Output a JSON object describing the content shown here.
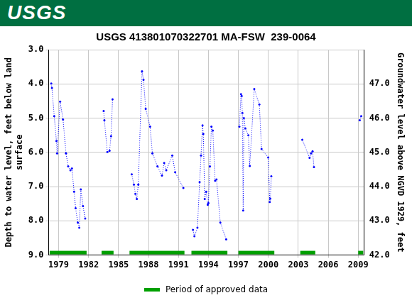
{
  "header": {
    "logo": "USGS"
  },
  "chart_data": {
    "type": "line",
    "title": "USGS 413801070322701 MA-FSW  239-0064",
    "y_label": [
      "Depth to water level, feet below land",
      "surface"
    ],
    "y2_label": "Groundwater level above NGVD 1929, feet",
    "xlim": [
      1978.0,
      2009.6
    ],
    "xticks": [
      1979,
      1982,
      1985,
      1988,
      1991,
      1994,
      1997,
      2000,
      2003,
      2006,
      2009
    ],
    "ylim": [
      9.0,
      3.0
    ],
    "yticks": [
      {
        "value": 3,
        "label": "3.0"
      },
      {
        "value": 4,
        "label": "4.0"
      },
      {
        "value": 5,
        "label": "5.0"
      },
      {
        "value": 6,
        "label": "6.0"
      },
      {
        "value": 7,
        "label": "7.0"
      },
      {
        "value": 8,
        "label": "8.0"
      },
      {
        "value": 9,
        "label": "9.0"
      }
    ],
    "y2lim": [
      42.0,
      48.0
    ],
    "y2ticks": [
      {
        "value": 42,
        "label": "42.0"
      },
      {
        "value": 43,
        "label": "43.0"
      },
      {
        "value": 44,
        "label": "44.0"
      },
      {
        "value": 45,
        "label": "45.0"
      },
      {
        "value": 46,
        "label": "46.0"
      },
      {
        "value": 47,
        "label": "47.0"
      }
    ],
    "grid": true,
    "legend": "bottom",
    "series": [
      {
        "color": "#0000ff",
        "marker": "circle",
        "line_style": "dotted",
        "x": [
          1978.26,
          1978.33,
          1978.56,
          1978.78,
          1978.85,
          1979.15,
          1979.44,
          1979.74,
          1979.96,
          1980.18,
          1980.33,
          1980.55,
          1980.7,
          1980.92,
          1981.07,
          1981.22,
          1981.44,
          1981.66
        ],
        "values": [
          3.99,
          4.12,
          4.94,
          5.67,
          6.03,
          4.52,
          5.04,
          6.03,
          6.41,
          6.52,
          6.47,
          7.15,
          7.63,
          8.05,
          8.2,
          7.08,
          7.57,
          7.93
        ]
      },
      {
        "color": "#0000ff",
        "marker": "circle",
        "line_style": "dotted",
        "x": [
          1983.51,
          1983.58,
          1983.88,
          1984.1,
          1984.25,
          1984.4
        ],
        "values": [
          4.79,
          5.06,
          5.99,
          5.95,
          5.53,
          4.45
        ]
      },
      {
        "color": "#0000ff",
        "marker": "circle",
        "line_style": "dotted",
        "x": [
          1986.32,
          1986.54,
          1986.69,
          1986.83,
          1986.98,
          1987.35,
          1987.5,
          1987.72,
          1988.16,
          1988.39,
          1988.9,
          1989.35,
          1989.57,
          1989.78,
          1990.38,
          1990.67,
          1991.49
        ],
        "values": [
          6.64,
          6.94,
          7.21,
          7.36,
          6.94,
          3.63,
          3.88,
          4.73,
          5.25,
          6.03,
          6.41,
          6.68,
          6.31,
          6.52,
          6.09,
          6.58,
          7.04
        ]
      },
      {
        "color": "#0000ff",
        "marker": "circle",
        "line_style": "dotted",
        "x": [
          1992.45,
          1992.6,
          1992.9,
          1993.12,
          1993.26,
          1993.41,
          1993.49,
          1993.63,
          1993.78,
          1993.93,
          1994.0,
          1994.15,
          1994.3,
          1994.44,
          1994.67,
          1994.81,
          1995.19,
          1995.78
        ],
        "values": [
          8.26,
          8.45,
          8.2,
          6.87,
          6.09,
          5.21,
          5.46,
          7.36,
          7.15,
          7.53,
          7.48,
          6.41,
          5.25,
          5.36,
          6.83,
          6.79,
          8.05,
          8.54
        ]
      },
      {
        "color": "#0000ff",
        "marker": "circle",
        "line_style": "dotted",
        "x": [
          1997.1,
          1997.26,
          1997.33,
          1997.4,
          1997.48,
          1997.55,
          1997.7,
          1998.0,
          1998.14,
          1998.59,
          1999.1,
          1999.32,
          1999.99,
          2000.14,
          2000.2,
          2000.3
        ],
        "values": [
          5.25,
          4.3,
          4.35,
          4.85,
          7.7,
          5.0,
          5.3,
          5.5,
          6.4,
          4.15,
          4.6,
          5.9,
          6.15,
          7.45,
          7.35,
          6.7
        ]
      },
      {
        "color": "#0000ff",
        "marker": "circle",
        "line_style": "dotted",
        "x": [
          2003.4,
          2004.13,
          2004.28,
          2004.43,
          2004.57
        ],
        "values": [
          5.63,
          6.16,
          6.03,
          5.97,
          6.43
        ]
      },
      {
        "color": "#0000ff",
        "marker": "circle",
        "line_style": "dotted",
        "x": [
          2009.15,
          2009.3
        ],
        "values": [
          5.06,
          4.94
        ]
      }
    ],
    "approved": {
      "name": "Period of approved data",
      "color": "#00a000",
      "ranges": [
        [
          1978.1,
          1981.8
        ],
        [
          1983.3,
          1984.5
        ],
        [
          1986.1,
          1991.6
        ],
        [
          1992.3,
          1995.9
        ],
        [
          1997.0,
          2000.6
        ],
        [
          2003.2,
          2004.7
        ],
        [
          2009.0,
          2009.5
        ]
      ]
    }
  }
}
